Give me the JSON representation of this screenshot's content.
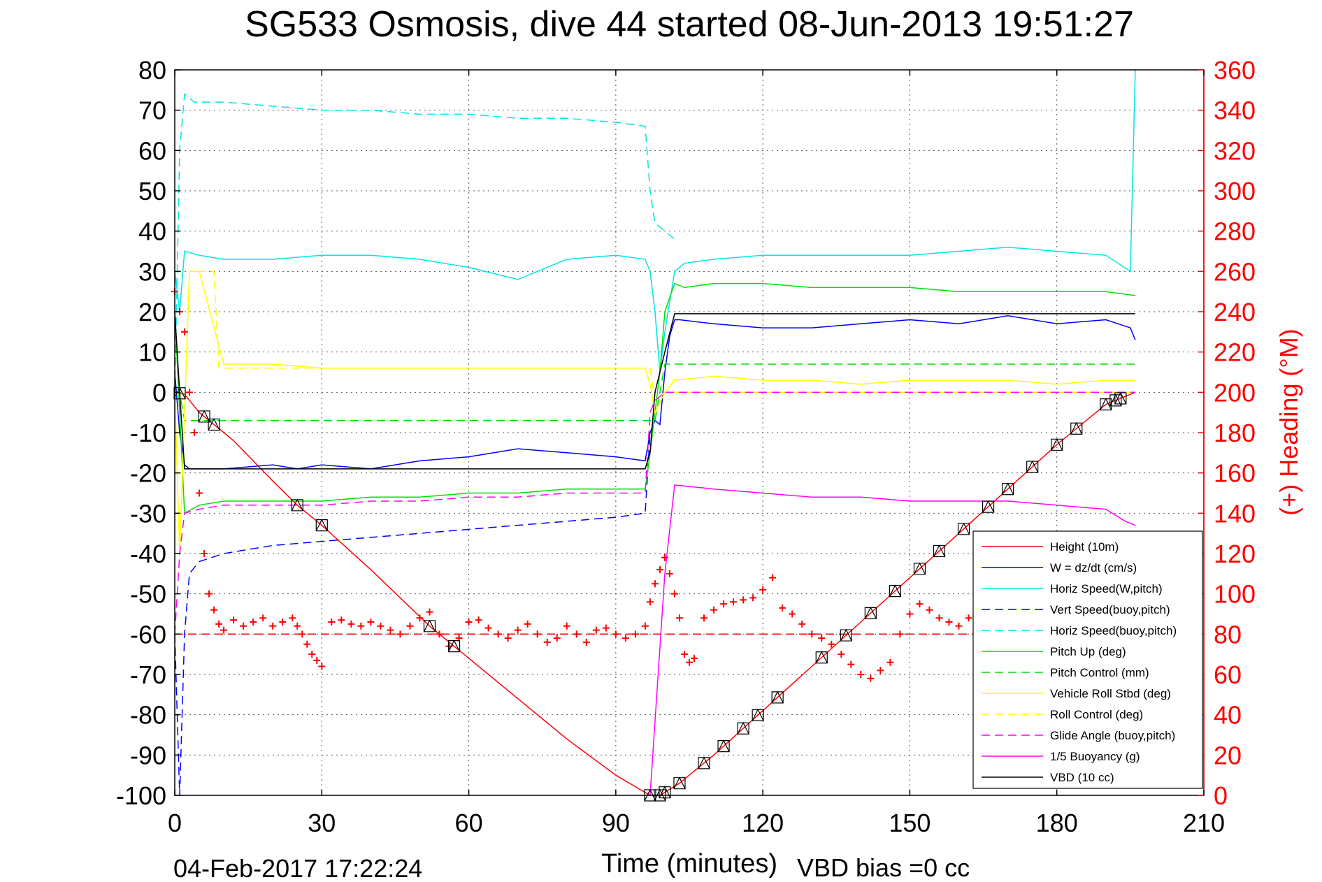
{
  "chart_data": {
    "type": "line",
    "title": "SG533 Osmosis, dive 44 started 08-Jun-2013 19:51:27",
    "xlabel": "Time (minutes)",
    "ylabel_right": "(+) Heading (°M)",
    "footer_left": "04-Feb-2017 17:22:24",
    "footer_right": "VBD bias =0 cc",
    "xlim": [
      0,
      210
    ],
    "ylim": [
      -100,
      80
    ],
    "ylim_right": [
      0,
      360
    ],
    "x_ticks": [
      0,
      30,
      60,
      90,
      120,
      150,
      180,
      210
    ],
    "y_ticks": [
      80,
      70,
      60,
      50,
      40,
      30,
      20,
      10,
      0,
      -10,
      -20,
      -30,
      -40,
      -50,
      -60,
      -70,
      -80,
      -90,
      -100
    ],
    "y_ticks_right": [
      360,
      340,
      320,
      300,
      280,
      260,
      240,
      220,
      200,
      180,
      160,
      140,
      120,
      100,
      80,
      60,
      40,
      20,
      0
    ],
    "grid": true,
    "legend_position": "lower-right",
    "series": [
      {
        "name": "Height (10m)",
        "color": "#ff0000",
        "style": "solid",
        "x": [
          0,
          2,
          5,
          8,
          12,
          16,
          20,
          25,
          30,
          40,
          52,
          57,
          70,
          80,
          90,
          97,
          99,
          103,
          110,
          120,
          130,
          140,
          150,
          160,
          170,
          180,
          190,
          196
        ],
        "y": [
          0,
          -0.5,
          -5,
          -8,
          -12,
          -17,
          -22,
          -28,
          -33,
          -44,
          -58,
          -63,
          -76,
          -86,
          -95,
          -100,
          -100,
          -97,
          -90,
          -79,
          -68,
          -57,
          -46,
          -35,
          -24,
          -13,
          -3,
          0
        ]
      },
      {
        "name": "W = dz/dt (cm/s)",
        "color": "#0000ff",
        "style": "solid",
        "x": [
          0,
          1,
          2,
          3,
          5,
          10,
          20,
          25,
          30,
          40,
          50,
          60,
          70,
          80,
          90,
          96,
          97,
          98,
          99,
          100,
          101,
          102,
          103,
          110,
          120,
          130,
          140,
          150,
          160,
          170,
          180,
          190,
          195,
          196
        ],
        "y": [
          5,
          -10,
          -18,
          -19,
          -19,
          -19,
          -18,
          -19,
          -18,
          -19,
          -17,
          -16,
          -14,
          -15,
          -16,
          -17,
          -10,
          -7,
          -8,
          5,
          14,
          18,
          18,
          17,
          16,
          16,
          17,
          18,
          17,
          19,
          17,
          18,
          16,
          13
        ]
      },
      {
        "name": "Horiz Speed(W,pitch)",
        "color": "#00e5e5",
        "style": "solid",
        "x": [
          0,
          1,
          2,
          5,
          10,
          20,
          30,
          40,
          50,
          60,
          70,
          80,
          90,
          96,
          97,
          98,
          99,
          100,
          102,
          104,
          110,
          120,
          130,
          140,
          150,
          160,
          170,
          180,
          190,
          195,
          196
        ],
        "y": [
          30,
          20,
          35,
          34,
          33,
          33,
          34,
          34,
          33,
          31,
          28,
          33,
          34,
          33,
          30,
          20,
          5,
          15,
          30,
          32,
          33,
          34,
          34,
          34,
          34,
          35,
          36,
          35,
          34,
          30,
          80
        ]
      },
      {
        "name": "Vert Speed(buoy,pitch)",
        "color": "#0000ff",
        "style": "dashed",
        "x": [
          0,
          1,
          2,
          3,
          5,
          10,
          20,
          30,
          40,
          50,
          60,
          70,
          80,
          90,
          96,
          97
        ],
        "y": [
          -60,
          -100,
          -60,
          -45,
          -42,
          -40,
          -38,
          -37,
          -36,
          -35,
          -34,
          -33,
          -32,
          -31,
          -30,
          -10
        ]
      },
      {
        "name": "Horiz Speed(buoy,pitch)",
        "color": "#00e5e5",
        "style": "dashed",
        "x": [
          0,
          1,
          2,
          4,
          10,
          20,
          30,
          40,
          50,
          60,
          70,
          80,
          90,
          96,
          97,
          98,
          100,
          102
        ],
        "y": [
          0,
          60,
          74,
          72,
          72,
          71,
          70,
          70,
          69,
          69,
          68,
          68,
          67,
          66,
          50,
          42,
          40,
          38
        ]
      },
      {
        "name": "Pitch Up (deg)",
        "color": "#00e000",
        "style": "solid",
        "x": [
          0,
          1,
          2,
          5,
          10,
          20,
          30,
          40,
          50,
          60,
          70,
          80,
          90,
          96,
          97,
          98,
          99,
          100,
          102,
          104,
          110,
          120,
          130,
          140,
          150,
          160,
          170,
          180,
          190,
          196
        ],
        "y": [
          20,
          -5,
          -30,
          -28,
          -27,
          -27,
          -27,
          -26,
          -26,
          -25,
          -25,
          -24,
          -24,
          -24,
          -15,
          -5,
          5,
          20,
          27,
          26,
          27,
          27,
          26,
          26,
          26,
          25,
          25,
          25,
          25,
          24
        ]
      },
      {
        "name": "Pitch Control (mm)",
        "color": "#00e000",
        "style": "dashed",
        "x": [
          0,
          1,
          2,
          5,
          97,
          98,
          100,
          110,
          196
        ],
        "y": [
          0,
          0,
          -7,
          -7,
          -7,
          -7,
          7,
          7,
          7
        ]
      },
      {
        "name": "Vehicle Roll Stbd (deg)",
        "color": "#ffff00",
        "style": "solid",
        "x": [
          0,
          1,
          3,
          5,
          10,
          20,
          30,
          40,
          50,
          60,
          70,
          80,
          90,
          96,
          97,
          98,
          100,
          102,
          110,
          120,
          130,
          140,
          150,
          160,
          170,
          180,
          190,
          196
        ],
        "y": [
          0,
          -40,
          30,
          30,
          7,
          7,
          6,
          6,
          6,
          6,
          6,
          6,
          6,
          6,
          2,
          -5,
          0,
          3,
          4,
          3,
          3,
          2,
          3,
          3,
          3,
          2,
          3,
          3
        ]
      },
      {
        "name": "Roll Control (deg)",
        "color": "#ffff00",
        "style": "dashed",
        "x": [
          0,
          1,
          3,
          8,
          9,
          97,
          98,
          100,
          196
        ],
        "y": [
          0,
          -40,
          30,
          30,
          6,
          6,
          -2,
          0,
          0
        ]
      },
      {
        "name": "Glide Angle (buoy,pitch)",
        "color": "#ff00ff",
        "style": "dashed",
        "x": [
          0,
          1,
          2,
          5,
          10,
          20,
          30,
          40,
          50,
          60,
          70,
          80,
          90,
          96,
          97,
          98,
          100,
          196
        ],
        "y": [
          -60,
          -40,
          -30,
          -29,
          -28,
          -28,
          -28,
          -27,
          -27,
          -26,
          -26,
          -25,
          -25,
          -25,
          -5,
          -2,
          0,
          0
        ]
      },
      {
        "name": "1/5 Buoyancy (g)",
        "color": "#ff00ff",
        "style": "solid",
        "x": [
          97,
          100,
          102,
          110,
          120,
          130,
          140,
          150,
          160,
          170,
          180,
          190,
          194,
          196
        ],
        "y": [
          -100,
          -45,
          -23,
          -24,
          -25,
          -26,
          -26,
          -27,
          -27,
          -27,
          -28,
          -29,
          -32,
          -33
        ]
      },
      {
        "name": "VBD (10 cc)",
        "color": "#000000",
        "style": "solid",
        "x": [
          0,
          1,
          2,
          96,
          97,
          98,
          100,
          102,
          196
        ],
        "y": [
          20,
          0,
          -19,
          -19,
          -15,
          0,
          10,
          19.5,
          19.5
        ]
      },
      {
        "name": "Heading",
        "color": "#ff0000",
        "style": "markers",
        "axis": "right",
        "x": [
          0,
          1,
          2,
          3,
          4,
          5,
          6,
          7,
          8,
          9,
          10,
          12,
          14,
          16,
          18,
          20,
          22,
          24,
          25,
          26,
          27,
          28,
          29,
          30,
          32,
          34,
          36,
          38,
          40,
          42,
          44,
          46,
          48,
          50,
          52,
          54,
          56,
          58,
          60,
          62,
          64,
          66,
          68,
          70,
          72,
          74,
          76,
          78,
          80,
          82,
          84,
          86,
          88,
          90,
          92,
          94,
          96,
          97,
          98,
          99,
          100,
          101,
          102,
          103,
          104,
          105,
          106,
          108,
          110,
          112,
          114,
          116,
          118,
          120,
          122,
          124,
          126,
          128,
          130,
          132,
          134,
          136,
          138,
          140,
          142,
          144,
          146,
          148,
          150,
          152,
          154,
          156,
          158,
          160,
          162,
          164,
          166,
          168,
          170,
          172,
          174,
          176,
          178,
          180,
          182,
          184,
          186,
          188,
          190,
          192,
          194,
          196
        ],
        "y": [
          250,
          240,
          230,
          200,
          180,
          150,
          120,
          100,
          92,
          85,
          82,
          87,
          84,
          86,
          88,
          84,
          86,
          88,
          84,
          80,
          75,
          70,
          67,
          64,
          86,
          87,
          85,
          84,
          86,
          84,
          82,
          80,
          84,
          88,
          91,
          80,
          74,
          78,
          86,
          87,
          83,
          80,
          78,
          82,
          85,
          80,
          76,
          78,
          84,
          80,
          76,
          82,
          83,
          80,
          78,
          80,
          84,
          96,
          105,
          112,
          118,
          110,
          100,
          88,
          70,
          66,
          68,
          88,
          92,
          95,
          96,
          97,
          98,
          102,
          108,
          93,
          90,
          85,
          80,
          78,
          75,
          70,
          65,
          60,
          58,
          62,
          66,
          80,
          90,
          95,
          92,
          88,
          86,
          84,
          88,
          95,
          100,
          94,
          90,
          86,
          90,
          96,
          98,
          100,
          104,
          110,
          106,
          98,
          94,
          92,
          90,
          95
        ]
      },
      {
        "name": "Heading target",
        "color": "#ff0000",
        "style": "dashed",
        "axis": "right",
        "x": [
          0,
          196
        ],
        "y": [
          80,
          80
        ]
      }
    ],
    "markers_on_height": {
      "symbol": "triangle-in-square",
      "x": [
        1,
        6,
        8,
        25,
        30,
        52,
        57,
        97,
        99,
        100,
        103,
        108,
        112,
        116,
        119,
        123,
        132,
        137,
        142,
        147,
        152,
        156,
        161,
        166,
        170,
        175,
        180,
        184,
        190,
        192,
        193
      ]
    }
  }
}
